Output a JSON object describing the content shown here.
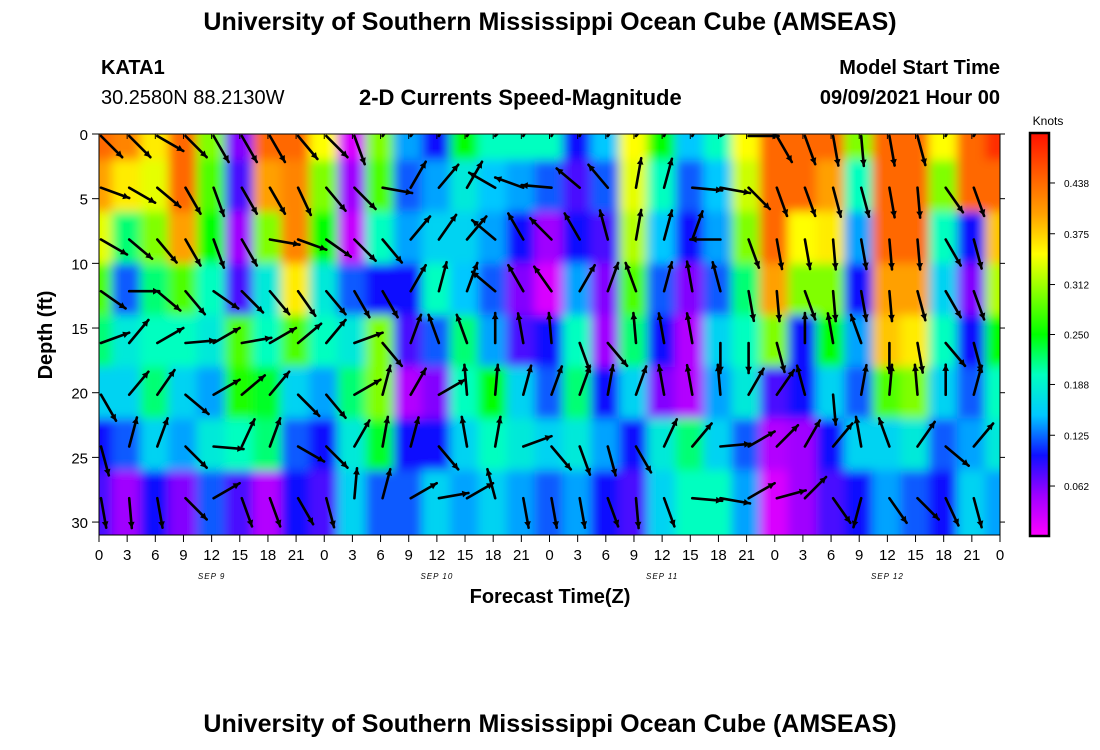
{
  "header": {
    "title_top": "University of Southern Mississippi Ocean Cube (AMSEAS)",
    "title_bottom": "University of Southern Mississippi Ocean Cube (AMSEAS)",
    "station_id": "KATA1",
    "station_coords": "30.2580N  88.2130W",
    "model_start_label": "Model Start Time",
    "model_start_value": "09/09/2021 Hour 00"
  },
  "chart_data": {
    "type": "heatmap",
    "title": "2-D Currents Speed-Magnitude",
    "xlabel": "Forecast Time(Z)",
    "ylabel": "Depth (ft)",
    "colorbar_title": "Knots",
    "colorbar_ticks": [
      "0.438",
      "0.375",
      "0.312",
      "0.250",
      "0.188",
      "0.125",
      "0.062"
    ],
    "colorbar_range": [
      0,
      0.5
    ],
    "colors": [
      "#ff00ff",
      "#a000ff",
      "#1010ff",
      "#00c8ff",
      "#00ffc0",
      "#00ff00",
      "#80ff00",
      "#ffff00",
      "#ffa000",
      "#ff5a00",
      "#ff1000"
    ],
    "x_tick_labels": [
      "0",
      "3",
      "6",
      "9",
      "12",
      "15",
      "18",
      "21",
      "0",
      "3",
      "6",
      "9",
      "12",
      "15",
      "18",
      "21",
      "0",
      "3",
      "6",
      "9",
      "12",
      "15",
      "18",
      "21",
      "0",
      "3",
      "6",
      "9",
      "12",
      "15",
      "18",
      "21",
      "0"
    ],
    "day_labels": [
      "SEP 9",
      "SEP 10",
      "SEP 11",
      "SEP 12"
    ],
    "y_ticks": [
      0,
      5,
      10,
      15,
      20,
      25,
      30
    ],
    "ylim": [
      0,
      31
    ],
    "x_hours": [
      0,
      96
    ],
    "depths": [
      0,
      4,
      8,
      12,
      16,
      20,
      24,
      28
    ],
    "speed": [
      [
        0.44,
        0.42,
        0.36,
        0.44,
        0.3,
        0.06,
        0.44,
        0.44,
        0.35,
        0.02,
        0.3,
        0.14,
        0.1,
        0.25,
        0.2,
        0.2,
        0.2,
        0.1,
        0.15,
        0.35,
        0.25,
        0.15,
        0.2,
        0.35,
        0.44,
        0.44,
        0.44,
        0.3,
        0.44,
        0.44,
        0.35,
        0.44,
        0.48
      ],
      [
        0.4,
        0.36,
        0.34,
        0.44,
        0.28,
        0.08,
        0.4,
        0.42,
        0.3,
        0.05,
        0.28,
        0.12,
        0.14,
        0.18,
        0.15,
        0.14,
        0.12,
        0.08,
        0.12,
        0.34,
        0.2,
        0.12,
        0.15,
        0.33,
        0.44,
        0.44,
        0.4,
        0.2,
        0.44,
        0.44,
        0.3,
        0.44,
        0.44
      ],
      [
        0.34,
        0.22,
        0.3,
        0.4,
        0.25,
        0.05,
        0.3,
        0.42,
        0.25,
        0.03,
        0.2,
        0.14,
        0.16,
        0.16,
        0.14,
        0.1,
        0.05,
        0.1,
        0.08,
        0.32,
        0.15,
        0.1,
        0.14,
        0.3,
        0.44,
        0.35,
        0.36,
        0.14,
        0.44,
        0.44,
        0.2,
        0.1,
        0.38
      ],
      [
        0.28,
        0.12,
        0.22,
        0.28,
        0.2,
        0.08,
        0.18,
        0.36,
        0.18,
        0.12,
        0.1,
        0.1,
        0.2,
        0.15,
        0.12,
        0.06,
        0.02,
        0.14,
        0.06,
        0.28,
        0.12,
        0.06,
        0.12,
        0.22,
        0.4,
        0.3,
        0.3,
        0.1,
        0.4,
        0.4,
        0.16,
        0.06,
        0.32
      ],
      [
        0.22,
        0.18,
        0.2,
        0.2,
        0.18,
        0.28,
        0.2,
        0.28,
        0.2,
        0.18,
        0.3,
        0.08,
        0.12,
        0.22,
        0.14,
        0.08,
        0.1,
        0.2,
        0.05,
        0.22,
        0.1,
        0.04,
        0.16,
        0.2,
        0.3,
        0.1,
        0.25,
        0.14,
        0.38,
        0.36,
        0.2,
        0.1,
        0.25
      ],
      [
        0.16,
        0.16,
        0.22,
        0.16,
        0.14,
        0.26,
        0.24,
        0.16,
        0.14,
        0.22,
        0.3,
        0.04,
        0.06,
        0.2,
        0.25,
        0.16,
        0.12,
        0.22,
        0.1,
        0.16,
        0.06,
        0.04,
        0.14,
        0.18,
        0.08,
        0.1,
        0.16,
        0.12,
        0.28,
        0.3,
        0.16,
        0.12,
        0.2
      ],
      [
        0.1,
        0.12,
        0.16,
        0.14,
        0.18,
        0.2,
        0.22,
        0.12,
        0.1,
        0.18,
        0.24,
        0.1,
        0.1,
        0.16,
        0.2,
        0.18,
        0.16,
        0.18,
        0.14,
        0.1,
        0.18,
        0.22,
        0.16,
        0.12,
        0.04,
        0.05,
        0.1,
        0.16,
        0.16,
        0.18,
        0.12,
        0.14,
        0.18
      ],
      [
        0.08,
        0.05,
        0.1,
        0.06,
        0.12,
        0.08,
        0.04,
        0.1,
        0.08,
        0.16,
        0.12,
        0.12,
        0.16,
        0.14,
        0.16,
        0.14,
        0.12,
        0.14,
        0.1,
        0.08,
        0.16,
        0.2,
        0.2,
        0.14,
        0.02,
        0.05,
        0.08,
        0.1,
        0.14,
        0.12,
        0.1,
        0.16,
        0.14
      ]
    ],
    "arrow_dir": [
      [
        135,
        135,
        120,
        135,
        150,
        150,
        150,
        140,
        135,
        160,
        35,
        40,
        30,
        35,
        45,
        30,
        30,
        25,
        35,
        40,
        25,
        30,
        60,
        90,
        150,
        160,
        170,
        175,
        170,
        165,
        25,
        30,
        55
      ],
      [
        110,
        120,
        130,
        150,
        160,
        150,
        150,
        155,
        140,
        135,
        100,
        30,
        40,
        30,
        300,
        290,
        275,
        310,
        320,
        10,
        15,
        95,
        100,
        135,
        160,
        160,
        165,
        165,
        170,
        175,
        145,
        160,
        170
      ],
      [
        120,
        130,
        140,
        150,
        160,
        150,
        100,
        110,
        125,
        135,
        140,
        40,
        35,
        40,
        310,
        330,
        315,
        330,
        345,
        10,
        15,
        20,
        270,
        160,
        170,
        170,
        175,
        170,
        175,
        175,
        150,
        165,
        170
      ],
      [
        125,
        90,
        130,
        140,
        125,
        135,
        140,
        145,
        140,
        150,
        150,
        30,
        15,
        20,
        310,
        330,
        325,
        30,
        20,
        340,
        15,
        350,
        345,
        170,
        175,
        160,
        175,
        170,
        175,
        165,
        150,
        160,
        170
      ],
      [
        70,
        40,
        60,
        85,
        60,
        80,
        60,
        50,
        40,
        70,
        140,
        20,
        340,
        340,
        0,
        350,
        355,
        160,
        140,
        355,
        350,
        350,
        180,
        180,
        165,
        0,
        350,
        340,
        180,
        170,
        140,
        165,
        170
      ],
      [
        150,
        40,
        35,
        130,
        60,
        50,
        40,
        135,
        140,
        60,
        15,
        30,
        60,
        355,
        5,
        15,
        20,
        20,
        10,
        20,
        350,
        350,
        355,
        30,
        35,
        345,
        175,
        10,
        5,
        355,
        0,
        15,
        150
      ],
      [
        165,
        15,
        20,
        135,
        95,
        25,
        20,
        120,
        135,
        30,
        10,
        15,
        140,
        350,
        10,
        70,
        140,
        160,
        165,
        150,
        25,
        40,
        85,
        60,
        45,
        30,
        40,
        350,
        340,
        35,
        130,
        40,
        30
      ],
      [
        170,
        175,
        170,
        135,
        60,
        160,
        160,
        150,
        165,
        5,
        15,
        60,
        80,
        60,
        345,
        170,
        170,
        170,
        160,
        175,
        160,
        95,
        100,
        60,
        75,
        45,
        145,
        195,
        145,
        135,
        155,
        165,
        170
      ]
    ]
  }
}
